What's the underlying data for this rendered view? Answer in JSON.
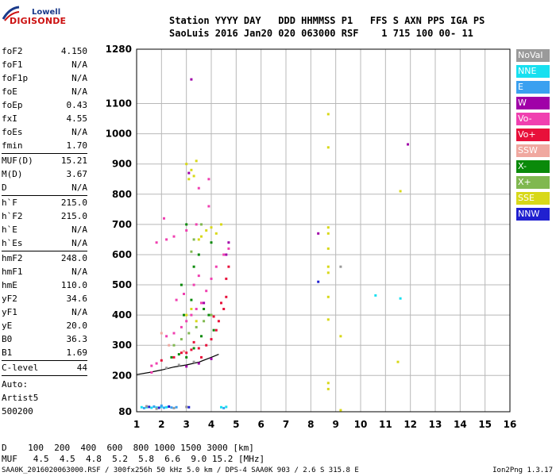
{
  "logo": {
    "line1": "Lowell",
    "line2": "DIGISONDE"
  },
  "header": {
    "line1": "Station YYYY DAY   DDD HHMMSS P1   FFS S AXN PPS IGA PS",
    "line2": "SaoLuis 2016 Jan20 020 063000 RSF    1 715 100 00- 11"
  },
  "params": [
    {
      "group": [
        {
          "name": "foF2",
          "value": "4.150"
        },
        {
          "name": "foF1",
          "value": "N/A"
        },
        {
          "name": "foF1p",
          "value": "N/A"
        },
        {
          "name": "foE",
          "value": "N/A"
        },
        {
          "name": "foEp",
          "value": "0.43"
        },
        {
          "name": "fxI",
          "value": "4.55"
        },
        {
          "name": "foEs",
          "value": "N/A"
        },
        {
          "name": "fmin",
          "value": "1.70"
        }
      ]
    },
    {
      "group": [
        {
          "name": "MUF(D)",
          "value": "15.21"
        },
        {
          "name": "M(D)",
          "value": "3.67"
        },
        {
          "name": "D",
          "value": "N/A"
        }
      ]
    },
    {
      "group": [
        {
          "name": "h`F",
          "value": "215.0"
        },
        {
          "name": "h`F2",
          "value": "215.0"
        },
        {
          "name": "h`E",
          "value": "N/A"
        },
        {
          "name": "h`Es",
          "value": "N/A"
        }
      ]
    },
    {
      "group": [
        {
          "name": "hmF2",
          "value": "248.0"
        },
        {
          "name": "hmF1",
          "value": "N/A"
        },
        {
          "name": "hmE",
          "value": "110.0"
        },
        {
          "name": "yF2",
          "value": "34.6"
        },
        {
          "name": "yF1",
          "value": "N/A"
        },
        {
          "name": "yE",
          "value": "20.0"
        },
        {
          "name": "B0",
          "value": "36.3"
        },
        {
          "name": "B1",
          "value": "1.69"
        }
      ]
    },
    {
      "group": [
        {
          "name": "C-level",
          "value": "44"
        }
      ]
    }
  ],
  "auto": {
    "line1": "Auto:",
    "line2": "Artist5",
    "line3": "500200"
  },
  "legend": [
    {
      "label": "NoVal",
      "color": "#9a9a9a"
    },
    {
      "label": "NNE",
      "color": "#18e0f0"
    },
    {
      "label": "E",
      "color": "#3aa0f0"
    },
    {
      "label": "W",
      "color": "#a000a8"
    },
    {
      "label": "Vo-",
      "color": "#f040b0"
    },
    {
      "label": "Vo+",
      "color": "#e8103a"
    },
    {
      "label": "SSW",
      "color": "#f0a8a0"
    },
    {
      "label": "X-",
      "color": "#0a8a0a"
    },
    {
      "label": "X+",
      "color": "#80b850"
    },
    {
      "label": "SSE",
      "color": "#d8d818"
    },
    {
      "label": "NNW",
      "color": "#2020d0"
    }
  ],
  "bottom": {
    "line1": "D    100  200  400  600  800 1000 1500 3000 [km]",
    "line2": "MUF   4.5  4.5  4.8  5.2  5.8  6.6  9.0 15.2 [MHz]"
  },
  "footer": "SAA0K_2016020063000.RSF / 300fx256h 50 kHz 5.0 km / DPS-4 SAA0K 903 / 2.6 S 315.8 E",
  "version": "Ion2Png 1.3.17",
  "chart_data": {
    "type": "scatter",
    "xlim": [
      1,
      16
    ],
    "xticks": [
      1,
      2,
      3,
      4,
      5,
      6,
      7,
      8,
      9,
      10,
      11,
      12,
      13,
      14,
      15,
      16
    ],
    "ylim": [
      80,
      1280
    ],
    "yticks": [
      80,
      200,
      300,
      400,
      500,
      600,
      700,
      800,
      900,
      1000,
      1100,
      1280
    ],
    "grid": true,
    "trace": {
      "x": [
        1.0,
        1.5,
        2.0,
        2.5,
        3.0,
        3.5,
        4.0,
        4.3
      ],
      "y": [
        203,
        210,
        218,
        228,
        235,
        244,
        260,
        270
      ]
    },
    "series": [
      {
        "name": "Vo+",
        "color": "#e8103a",
        "points": [
          [
            2.0,
            250
          ],
          [
            2.5,
            260
          ],
          [
            3.0,
            275
          ],
          [
            3.5,
            290
          ],
          [
            3.8,
            300
          ],
          [
            4.0,
            320
          ],
          [
            4.2,
            350
          ],
          [
            4.3,
            380
          ],
          [
            4.5,
            420
          ],
          [
            4.6,
            460
          ],
          [
            4.6,
            520
          ],
          [
            4.7,
            560
          ],
          [
            3.6,
            260
          ],
          [
            3.2,
            285
          ],
          [
            2.8,
            275
          ],
          [
            4.1,
            395
          ],
          [
            4.4,
            440
          ],
          [
            3.3,
            310
          ]
        ]
      },
      {
        "name": "Vo-",
        "color": "#f040b0",
        "points": [
          [
            1.6,
            232
          ],
          [
            1.8,
            240
          ],
          [
            2.2,
            330
          ],
          [
            2.5,
            340
          ],
          [
            2.8,
            360
          ],
          [
            3.0,
            380
          ],
          [
            3.2,
            400
          ],
          [
            3.4,
            420
          ],
          [
            3.6,
            440
          ],
          [
            3.8,
            480
          ],
          [
            4.0,
            520
          ],
          [
            4.2,
            560
          ],
          [
            4.5,
            600
          ],
          [
            4.7,
            620
          ],
          [
            2.6,
            450
          ],
          [
            2.9,
            470
          ],
          [
            3.3,
            500
          ],
          [
            3.5,
            530
          ],
          [
            1.8,
            640
          ],
          [
            2.2,
            650
          ],
          [
            2.5,
            660
          ],
          [
            3.0,
            680
          ],
          [
            3.4,
            700
          ],
          [
            3.9,
            760
          ],
          [
            3.9,
            850
          ],
          [
            3.5,
            820
          ],
          [
            2.1,
            720
          ],
          [
            1.6,
            210
          ]
        ]
      },
      {
        "name": "X-",
        "color": "#0a8a0a",
        "points": [
          [
            2.4,
            260
          ],
          [
            2.7,
            270
          ],
          [
            3.0,
            260
          ],
          [
            3.3,
            290
          ],
          [
            3.6,
            330
          ],
          [
            3.9,
            400
          ],
          [
            4.1,
            350
          ],
          [
            3.7,
            420
          ],
          [
            3.2,
            450
          ],
          [
            2.9,
            400
          ],
          [
            3.5,
            600
          ],
          [
            4.0,
            640
          ],
          [
            3.0,
            700
          ],
          [
            3.3,
            560
          ],
          [
            2.8,
            500
          ]
        ]
      },
      {
        "name": "X+",
        "color": "#80b850",
        "points": [
          [
            2.5,
            300
          ],
          [
            2.8,
            320
          ],
          [
            3.1,
            340
          ],
          [
            3.4,
            360
          ],
          [
            3.7,
            380
          ],
          [
            4.0,
            400
          ],
          [
            3.2,
            610
          ],
          [
            3.6,
            700
          ],
          [
            3.3,
            650
          ]
        ]
      },
      {
        "name": "SSE",
        "color": "#d8d818",
        "points": [
          [
            3.0,
            900
          ],
          [
            3.2,
            880
          ],
          [
            3.4,
            910
          ],
          [
            3.1,
            850
          ],
          [
            3.3,
            860
          ],
          [
            3.0,
            400
          ],
          [
            3.2,
            420
          ],
          [
            3.4,
            380
          ],
          [
            3.6,
            660
          ],
          [
            3.8,
            680
          ],
          [
            4.0,
            690
          ],
          [
            4.2,
            670
          ],
          [
            4.4,
            700
          ],
          [
            3.5,
            650
          ],
          [
            8.7,
            1065
          ],
          [
            8.7,
            955
          ],
          [
            8.7,
            690
          ],
          [
            8.7,
            670
          ],
          [
            8.7,
            620
          ],
          [
            8.7,
            560
          ],
          [
            8.7,
            540
          ],
          [
            8.7,
            460
          ],
          [
            8.7,
            385
          ],
          [
            8.7,
            175
          ],
          [
            8.7,
            155
          ],
          [
            9.2,
            330
          ],
          [
            9.2,
            85
          ],
          [
            11.5,
            245
          ],
          [
            11.6,
            810
          ]
        ]
      },
      {
        "name": "W",
        "color": "#a000a8",
        "points": [
          [
            3.0,
            230
          ],
          [
            3.5,
            240
          ],
          [
            4.0,
            255
          ],
          [
            4.6,
            600
          ],
          [
            4.7,
            640
          ],
          [
            3.7,
            440
          ],
          [
            3.1,
            870
          ],
          [
            11.9,
            965
          ],
          [
            8.3,
            670
          ],
          [
            3.2,
            1180
          ]
        ]
      },
      {
        "name": "NNE",
        "color": "#18e0f0",
        "points": [
          [
            1.2,
            95
          ],
          [
            1.4,
            95
          ],
          [
            1.6,
            93
          ],
          [
            1.8,
            94
          ],
          [
            2.0,
            96
          ],
          [
            2.2,
            95
          ],
          [
            4.4,
            95
          ],
          [
            4.6,
            96
          ],
          [
            10.6,
            465
          ],
          [
            11.6,
            455
          ]
        ]
      },
      {
        "name": "E",
        "color": "#3aa0f0",
        "points": [
          [
            1.3,
            92
          ],
          [
            1.7,
            97
          ],
          [
            2.1,
            93
          ],
          [
            2.4,
            94
          ],
          [
            2.6,
            95
          ],
          [
            2.0,
            100
          ],
          [
            4.5,
            92
          ]
        ]
      },
      {
        "name": "NNW",
        "color": "#2020d0",
        "points": [
          [
            1.5,
            96
          ],
          [
            1.9,
            93
          ],
          [
            2.3,
            97
          ],
          [
            3.1,
            95
          ],
          [
            8.3,
            510
          ]
        ]
      },
      {
        "name": "NoVal",
        "color": "#9a9a9a",
        "points": [
          [
            1.4,
            98
          ],
          [
            1.8,
            90
          ],
          [
            2.5,
            92
          ],
          [
            3.0,
            96
          ],
          [
            9.2,
            560
          ],
          [
            2.2,
            225
          ],
          [
            2.7,
            235
          ],
          [
            3.3,
            245
          ]
        ]
      },
      {
        "name": "SSW",
        "color": "#f0a8a0",
        "points": [
          [
            2.0,
            340
          ],
          [
            2.3,
            300
          ],
          [
            2.9,
            280
          ]
        ]
      }
    ]
  }
}
